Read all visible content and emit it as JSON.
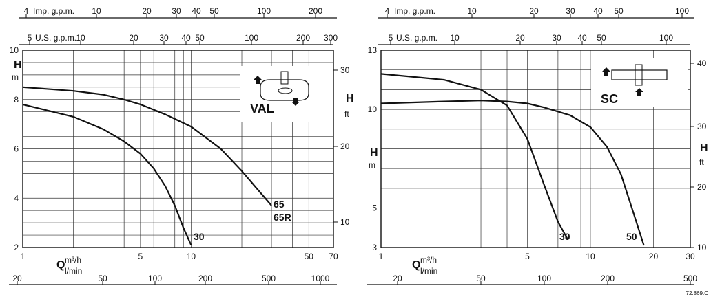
{
  "chart_data": [
    {
      "type": "line",
      "model": "VAL",
      "xscale": "log",
      "x_unit_main": "m³/h",
      "x_unit_second": "l/min",
      "flow_symbol": "Q",
      "xlim": [
        1,
        70
      ],
      "ylim": [
        2,
        10
      ],
      "ylabel": "H",
      "ylabel_unit": "m",
      "ylabel_right": "H",
      "ylabel_right_unit": "ft",
      "x_ticks": [
        "1",
        "5",
        "10",
        "50",
        "70"
      ],
      "y_ticks": [
        "2",
        "4",
        "6",
        "8",
        "10"
      ],
      "top_axis_imp": {
        "label": "Imp. g.p.m.",
        "ticks": [
          "4",
          "10",
          "20",
          "30",
          "40",
          "50",
          "100",
          "200"
        ]
      },
      "top_axis_us": {
        "label": "U.S. g.p.m.",
        "ticks": [
          "5",
          "10",
          "20",
          "30",
          "40",
          "50",
          "100",
          "200",
          "300"
        ]
      },
      "bottom_axis_lmin": {
        "ticks": [
          "20",
          "50",
          "100",
          "200",
          "500",
          "1000"
        ]
      },
      "right_axis_ft": {
        "ticks": [
          "10",
          "20",
          "30"
        ]
      },
      "series": [
        {
          "name": "65 65R",
          "label_lines": [
            "65",
            "65R"
          ],
          "x": [
            1,
            2,
            3,
            4,
            5,
            7,
            10,
            15,
            20,
            30
          ],
          "y": [
            8.5,
            8.35,
            8.2,
            8.0,
            7.8,
            7.4,
            6.9,
            6.0,
            5.1,
            3.7
          ]
        },
        {
          "name": "30",
          "label_lines": [
            "30"
          ],
          "x": [
            1,
            2,
            3,
            4,
            5,
            6,
            7,
            8,
            9,
            10
          ],
          "y": [
            7.8,
            7.3,
            6.8,
            6.3,
            5.8,
            5.2,
            4.5,
            3.7,
            2.8,
            2.1
          ]
        }
      ]
    },
    {
      "type": "line",
      "model": "SC",
      "xscale": "log",
      "x_unit_main": "m³/h",
      "x_unit_second": "l/min",
      "flow_symbol": "Q",
      "xlim": [
        1,
        30
      ],
      "ylim": [
        3,
        13
      ],
      "ylabel": "H",
      "ylabel_unit": "m",
      "ylabel_right": "H",
      "ylabel_right_unit": "ft",
      "x_ticks": [
        "1",
        "5",
        "10",
        "20",
        "30"
      ],
      "y_ticks": [
        "3",
        "5",
        "10",
        "13"
      ],
      "top_axis_imp": {
        "label": "Imp. g.p.m.",
        "ticks": [
          "4",
          "10",
          "20",
          "30",
          "40",
          "50",
          "100"
        ]
      },
      "top_axis_us": {
        "label": "U.S. g.p.m.",
        "ticks": [
          "5",
          "10",
          "20",
          "30",
          "40",
          "50",
          "100"
        ]
      },
      "bottom_axis_lmin": {
        "ticks": [
          "20",
          "50",
          "100",
          "200",
          "500"
        ]
      },
      "right_axis_ft": {
        "ticks": [
          "10",
          "20",
          "30",
          "40"
        ]
      },
      "series": [
        {
          "name": "30",
          "label_lines": [
            "30"
          ],
          "x": [
            1,
            2,
            3,
            4,
            5,
            6,
            7,
            7.8
          ],
          "y": [
            11.8,
            11.5,
            11.0,
            10.2,
            8.5,
            6.2,
            4.3,
            3.4
          ]
        },
        {
          "name": "50",
          "label_lines": [
            "50"
          ],
          "x": [
            1,
            2,
            3,
            4,
            5,
            6,
            8,
            10,
            12,
            14,
            16,
            18
          ],
          "y": [
            10.3,
            10.4,
            10.45,
            10.4,
            10.3,
            10.1,
            9.7,
            9.1,
            8.1,
            6.7,
            4.8,
            3.1
          ]
        }
      ]
    }
  ],
  "footer": {
    "code": "72.869.C"
  }
}
